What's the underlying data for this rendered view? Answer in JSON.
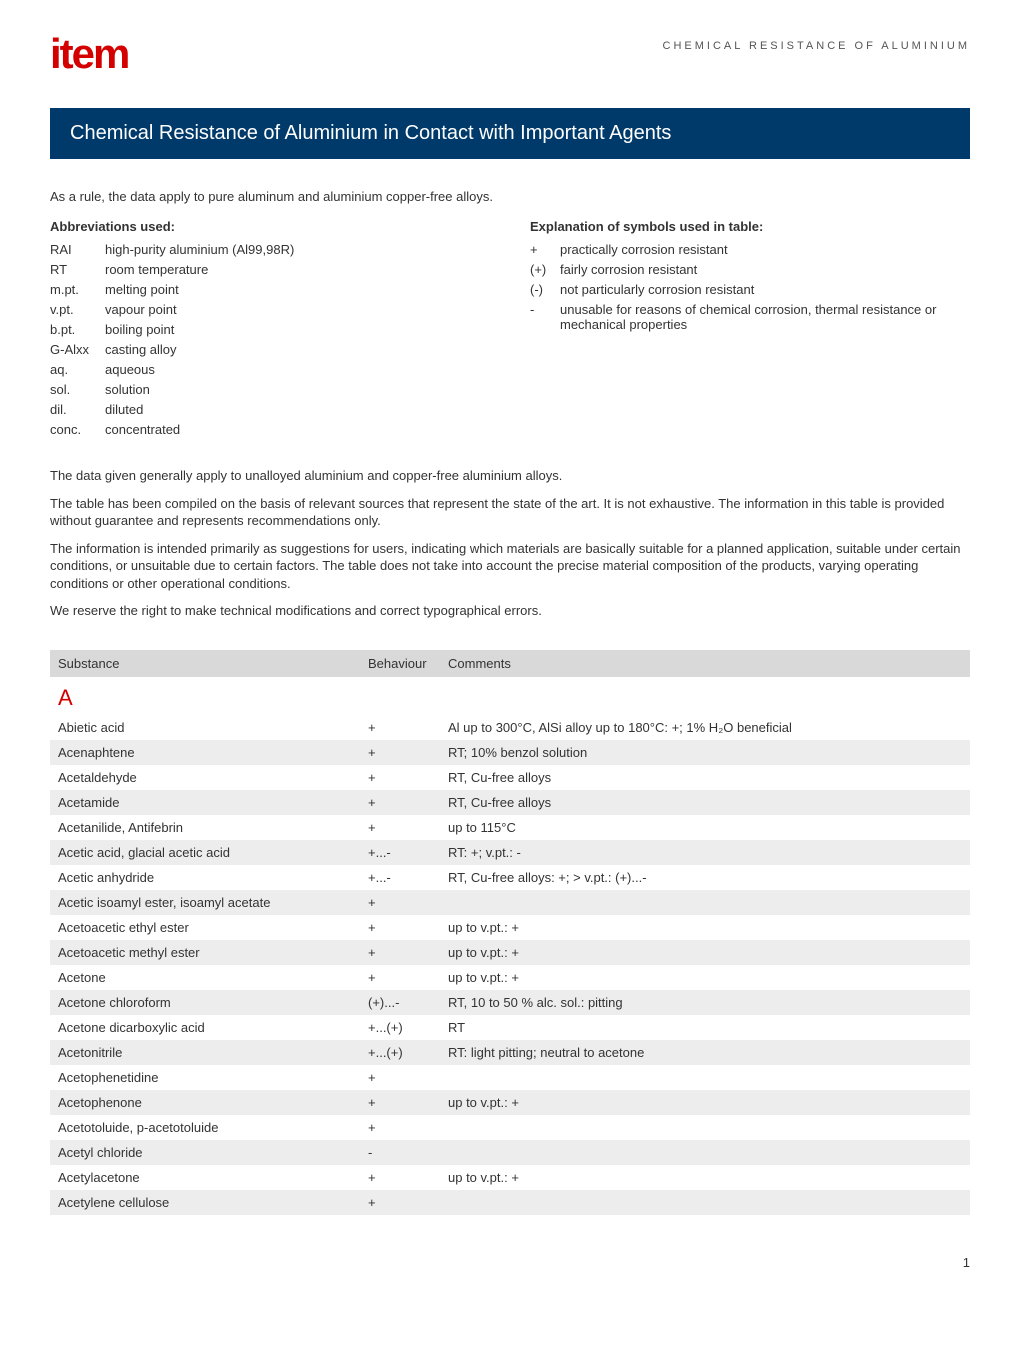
{
  "header": {
    "logo": "item",
    "doc_category": "CHEMICAL RESISTANCE OF ALUMINIUM"
  },
  "title": "Chemical Resistance of Aluminium in Contact with Important Agents",
  "intro": "As a rule, the data apply to pure aluminum and aluminium copper-free alloys.",
  "abbrev_heading": "Abbreviations used:",
  "abbreviations": [
    {
      "key": "RAI",
      "val": "high-purity aluminium (Al99,98R)"
    },
    {
      "key": "RT",
      "val": "room temperature"
    },
    {
      "key": "m.pt.",
      "val": "melting point"
    },
    {
      "key": "v.pt.",
      "val": "vapour point"
    },
    {
      "key": "b.pt.",
      "val": "boiling point"
    },
    {
      "key": "G-Alxx",
      "val": "casting alloy"
    },
    {
      "key": "aq.",
      "val": "aqueous"
    },
    {
      "key": "sol.",
      "val": "solution"
    },
    {
      "key": "dil.",
      "val": "diluted"
    },
    {
      "key": "conc.",
      "val": "concentrated"
    }
  ],
  "symbols_heading": "Explanation of symbols used in table:",
  "symbols": [
    {
      "key": "+",
      "val": "practically corrosion resistant"
    },
    {
      "key": "(+)",
      "val": "fairly corrosion resistant"
    },
    {
      "key": "(-)",
      "val": "not particularly corrosion resistant"
    },
    {
      "key": "-",
      "val": "unusable for reasons of chemical corrosion, thermal resistance or mechanical properties"
    }
  ],
  "paragraphs": [
    "The data given generally apply to unalloyed aluminium and copper-free aluminium alloys.",
    "The table has been compiled on the basis of relevant sources that represent the state of the art. It is not exhaustive. The information in this table is provided without guarantee and represents recommendations only.",
    "The information is intended primarily as suggestions for users, indicating which materials are basically suitable for a planned application, suitable under certain conditions, or unsuitable due to certain factors. The table does not take into account the precise material composition of the products, varying operating conditions or other operational conditions.",
    "We reserve the right to make technical modifications and correct typographical errors."
  ],
  "table": {
    "columns": [
      "Substance",
      "Behaviour",
      "Comments"
    ],
    "section_letter": "A",
    "rows": [
      {
        "substance": "Abietic acid",
        "behaviour": "+",
        "comments": "Al up to 300°C, AlSi alloy up to 180°C: +; 1% H₂O beneficial",
        "alt": false
      },
      {
        "substance": "Acenaphtene",
        "behaviour": "+",
        "comments": "RT; 10% benzol solution",
        "alt": true
      },
      {
        "substance": "Acetaldehyde",
        "behaviour": "+",
        "comments": "RT, Cu-free alloys",
        "alt": false
      },
      {
        "substance": "Acetamide",
        "behaviour": "+",
        "comments": "RT, Cu-free alloys",
        "alt": true
      },
      {
        "substance": "Acetanilide, Antifebrin",
        "behaviour": "+",
        "comments": "up to 115°C",
        "alt": false
      },
      {
        "substance": "Acetic acid, glacial acetic acid",
        "behaviour": "+...-",
        "comments": "RT: +; v.pt.: -",
        "alt": true
      },
      {
        "substance": "Acetic anhydride",
        "behaviour": "+...-",
        "comments": "RT, Cu-free alloys: +; > v.pt.: (+)...-",
        "alt": false
      },
      {
        "substance": "Acetic isoamyl ester, isoamyl acetate",
        "behaviour": "+",
        "comments": "",
        "alt": true
      },
      {
        "substance": "Acetoacetic ethyl ester",
        "behaviour": "+",
        "comments": "up to v.pt.: +",
        "alt": false
      },
      {
        "substance": "Acetoacetic methyl ester",
        "behaviour": "+",
        "comments": "up to v.pt.: +",
        "alt": true
      },
      {
        "substance": "Acetone",
        "behaviour": "+",
        "comments": "up to v.pt.: +",
        "alt": false
      },
      {
        "substance": "Acetone chloroform",
        "behaviour": "(+)...-",
        "comments": "RT, 10 to 50 % alc. sol.: pitting",
        "alt": true
      },
      {
        "substance": "Acetone dicarboxylic acid",
        "behaviour": "+...(+)",
        "comments": "RT",
        "alt": false
      },
      {
        "substance": "Acetonitrile",
        "behaviour": "+...(+)",
        "comments": "RT: light pitting; neutral to acetone",
        "alt": true
      },
      {
        "substance": "Acetophenetidine",
        "behaviour": "+",
        "comments": "",
        "alt": false
      },
      {
        "substance": "Acetophenone",
        "behaviour": "+",
        "comments": "up to v.pt.: +",
        "alt": true
      },
      {
        "substance": "Acetotoluide, p-acetotoluide",
        "behaviour": "+",
        "comments": "",
        "alt": false
      },
      {
        "substance": "Acetyl chloride",
        "behaviour": "-",
        "comments": "",
        "alt": true
      },
      {
        "substance": "Acetylacetone",
        "behaviour": "+",
        "comments": "up to v.pt.: +",
        "alt": false
      },
      {
        "substance": "Acetylene cellulose",
        "behaviour": "+",
        "comments": "",
        "alt": true
      }
    ]
  },
  "page_number": "1",
  "colors": {
    "brand_red": "#d40000",
    "title_bg": "#003a6a",
    "header_bg": "#d9d9d9",
    "alt_row": "#ededed",
    "text": "#333333"
  }
}
